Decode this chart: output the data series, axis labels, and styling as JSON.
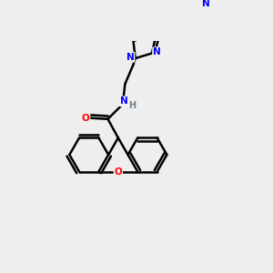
{
  "background_color": "#eeeeee",
  "atom_colors": {
    "N": "#0000ff",
    "O": "#ff0000",
    "H": "#708090",
    "C": "#000000"
  },
  "bond_color": "#000000",
  "bond_width": 1.8,
  "figsize": [
    3.0,
    3.0
  ],
  "dpi": 100
}
